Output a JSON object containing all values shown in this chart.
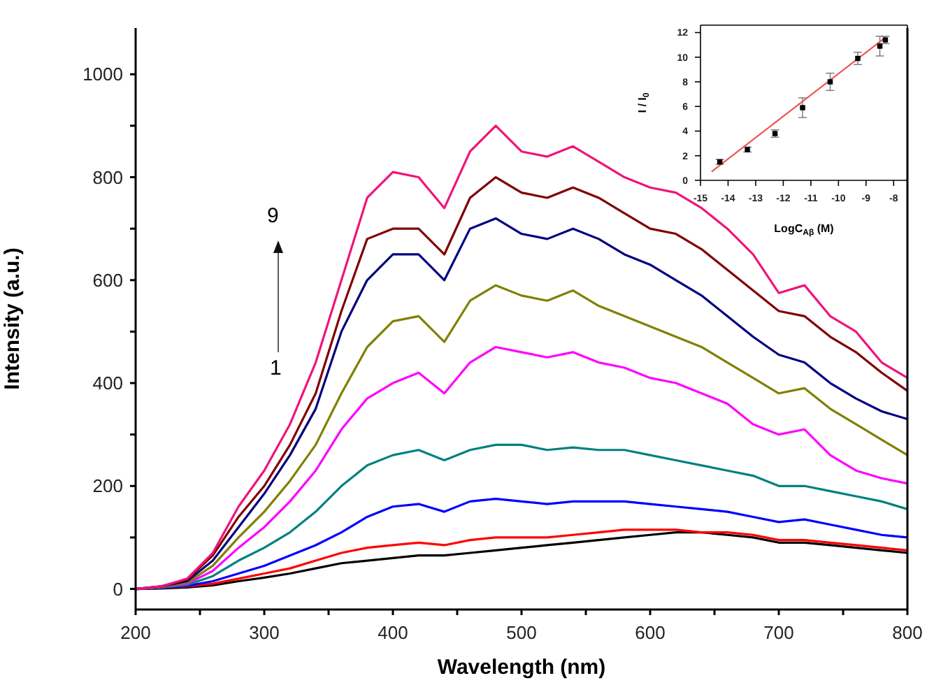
{
  "chart_data": [
    {
      "type": "line",
      "xlabel": "Wavelength (nm)",
      "ylabel": "Intensity (a.u.)",
      "annotations": [
        "9",
        "1"
      ],
      "marker": "none",
      "x": [
        200,
        220,
        240,
        260,
        280,
        300,
        320,
        340,
        360,
        380,
        400,
        420,
        440,
        460,
        480,
        500,
        520,
        540,
        560,
        580,
        600,
        620,
        640,
        660,
        680,
        700,
        720,
        740,
        760,
        780,
        800
      ],
      "xlim": [
        200,
        800
      ],
      "xticks": [
        200,
        {
          "value": 250,
          "label": null
        },
        300,
        {
          "value": 350,
          "label": null
        },
        400,
        {
          "value": 450,
          "label": null
        },
        500,
        {
          "value": 550,
          "label": null
        },
        600,
        {
          "value": 650,
          "label": null
        },
        700,
        {
          "value": 750,
          "label": null
        },
        800
      ],
      "ylim": [
        -40,
        1090
      ],
      "yticks": [
        0,
        {
          "value": 100,
          "label": null
        },
        200,
        {
          "value": 300,
          "label": null
        },
        400,
        {
          "value": 500,
          "label": null
        },
        600,
        {
          "value": 700,
          "label": null
        },
        800,
        {
          "value": 900,
          "label": null
        },
        1000
      ],
      "series": [
        {
          "color": "#000000",
          "values": [
            0,
            1,
            3,
            7,
            15,
            22,
            30,
            40,
            50,
            55,
            60,
            65,
            65,
            70,
            75,
            80,
            85,
            90,
            95,
            100,
            105,
            110,
            110,
            105,
            100,
            90,
            90,
            85,
            80,
            75,
            70
          ]
        },
        {
          "color": "#ff0000",
          "values": [
            0,
            2,
            5,
            10,
            20,
            30,
            40,
            55,
            70,
            80,
            85,
            90,
            85,
            95,
            100,
            100,
            100,
            105,
            110,
            115,
            115,
            115,
            110,
            110,
            105,
            95,
            95,
            90,
            85,
            80,
            75
          ]
        },
        {
          "color": "#0000ff",
          "values": [
            0,
            2,
            6,
            15,
            30,
            45,
            65,
            85,
            110,
            140,
            160,
            165,
            150,
            170,
            175,
            170,
            165,
            170,
            170,
            170,
            165,
            160,
            155,
            150,
            140,
            130,
            135,
            125,
            115,
            105,
            100
          ]
        },
        {
          "color": "#008080",
          "values": [
            0,
            3,
            8,
            25,
            55,
            80,
            110,
            150,
            200,
            240,
            260,
            270,
            250,
            270,
            280,
            280,
            270,
            275,
            270,
            270,
            260,
            250,
            240,
            230,
            220,
            200,
            200,
            190,
            180,
            170,
            155
          ]
        },
        {
          "color": "#ff00ff",
          "values": [
            0,
            4,
            10,
            35,
            80,
            120,
            170,
            230,
            310,
            370,
            400,
            420,
            380,
            440,
            470,
            460,
            450,
            460,
            440,
            430,
            410,
            400,
            380,
            360,
            320,
            300,
            310,
            260,
            230,
            215,
            205
          ]
        },
        {
          "color": "#808000",
          "values": [
            0,
            4,
            12,
            45,
            100,
            150,
            210,
            280,
            380,
            470,
            520,
            530,
            480,
            560,
            590,
            570,
            560,
            580,
            550,
            530,
            510,
            490,
            470,
            440,
            410,
            380,
            390,
            350,
            320,
            290,
            260
          ]
        },
        {
          "color": "#000080",
          "values": [
            0,
            5,
            15,
            55,
            120,
            185,
            260,
            350,
            500,
            600,
            650,
            650,
            600,
            700,
            720,
            690,
            680,
            700,
            680,
            650,
            630,
            600,
            570,
            530,
            490,
            455,
            440,
            400,
            370,
            345,
            330
          ]
        },
        {
          "color": "#800000",
          "values": [
            0,
            5,
            18,
            65,
            140,
            200,
            280,
            380,
            540,
            680,
            700,
            700,
            650,
            760,
            800,
            770,
            760,
            780,
            760,
            730,
            700,
            690,
            660,
            620,
            580,
            540,
            530,
            490,
            460,
            420,
            385
          ]
        },
        {
          "color": "#f0147a",
          "values": [
            0,
            5,
            20,
            70,
            160,
            230,
            320,
            440,
            600,
            760,
            810,
            800,
            740,
            850,
            900,
            850,
            840,
            860,
            830,
            800,
            780,
            770,
            740,
            700,
            650,
            575,
            590,
            530,
            500,
            440,
            410
          ]
        }
      ]
    },
    {
      "type": "scatter",
      "xlabel": "LogC$_{Aβ}$ (M)",
      "ylabel": "I / I$_{0}$",
      "marker": "square",
      "xlim": [
        -15,
        -7.5
      ],
      "xticks": [
        -15,
        -14,
        -13,
        -12,
        -11,
        -10,
        -9,
        -8
      ],
      "ylim": [
        0,
        12.6
      ],
      "yticks": [
        0,
        2,
        4,
        6,
        8,
        10,
        12
      ],
      "series": [
        {
          "color": "#000000",
          "x": [
            -14.3,
            -13.3,
            -12.3,
            -11.3,
            -10.3,
            -9.3,
            -8.5,
            -8.3
          ],
          "values": [
            1.5,
            2.5,
            3.8,
            5.9,
            8.0,
            9.9,
            10.9,
            11.4
          ],
          "errors": [
            0.2,
            0.2,
            0.3,
            0.8,
            0.7,
            0.5,
            0.8,
            0.3
          ]
        },
        {
          "type": "line",
          "marker": "none",
          "color": "#f05050",
          "x": [
            -14.6,
            -8.3
          ],
          "values": [
            0.7,
            11.6
          ]
        }
      ]
    }
  ]
}
